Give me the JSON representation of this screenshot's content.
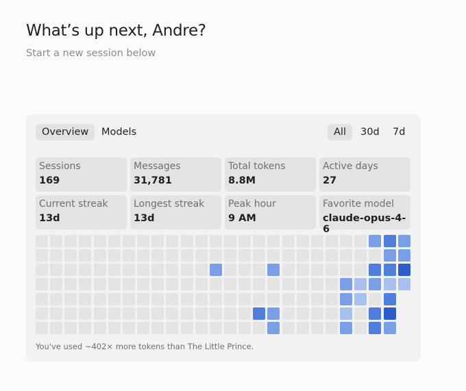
{
  "header": {
    "title": "What’s up next, Andre?",
    "subtitle": "Start a new session below"
  },
  "tabs": [
    "Overview",
    "Models"
  ],
  "ranges": [
    "All",
    "30d",
    "7d"
  ],
  "stats": [
    {
      "label": "Sessions",
      "value": "169"
    },
    {
      "label": "Messages",
      "value": "31,781"
    },
    {
      "label": "Total tokens",
      "value": "8.8M"
    },
    {
      "label": "Active days",
      "value": "27"
    },
    {
      "label": "Current streak",
      "value": "13d"
    },
    {
      "label": "Longest streak",
      "value": "13d"
    },
    {
      "label": "Peak hour",
      "value": "9 AM"
    },
    {
      "label": "Favorite model",
      "value": "claude-opus-4-6"
    }
  ],
  "heatmap": {
    "level_colors": [
      "#e4e4e4",
      "#a8c0ee",
      "#7a9fe6",
      "#4f7edb",
      "#2d5ccb"
    ],
    "rows": [
      [
        0,
        0,
        0,
        0,
        0,
        0,
        0,
        0,
        0,
        0,
        0,
        0,
        0,
        0,
        0,
        0,
        0,
        0,
        0,
        0,
        0,
        0,
        0,
        2,
        3,
        2
      ],
      [
        0,
        0,
        0,
        0,
        0,
        0,
        0,
        0,
        0,
        0,
        0,
        0,
        0,
        0,
        0,
        0,
        0,
        0,
        0,
        0,
        0,
        0,
        0,
        0,
        2,
        2
      ],
      [
        0,
        0,
        0,
        0,
        0,
        0,
        0,
        0,
        0,
        0,
        0,
        0,
        2,
        0,
        0,
        0,
        2,
        0,
        0,
        0,
        0,
        0,
        0,
        3,
        3,
        4
      ],
      [
        0,
        0,
        0,
        0,
        0,
        0,
        0,
        0,
        0,
        0,
        0,
        0,
        0,
        0,
        0,
        0,
        0,
        0,
        0,
        0,
        0,
        2,
        1,
        2,
        1,
        1
      ],
      [
        0,
        0,
        0,
        0,
        0,
        0,
        0,
        0,
        0,
        0,
        0,
        0,
        0,
        0,
        0,
        0,
        0,
        0,
        0,
        0,
        0,
        2,
        1,
        0,
        3,
        null
      ],
      [
        0,
        0,
        0,
        0,
        0,
        0,
        0,
        0,
        0,
        0,
        0,
        0,
        0,
        0,
        0,
        3,
        2,
        0,
        0,
        0,
        0,
        1,
        0,
        3,
        4,
        null
      ],
      [
        0,
        0,
        0,
        0,
        0,
        0,
        0,
        0,
        0,
        0,
        0,
        0,
        0,
        0,
        0,
        0,
        2,
        0,
        0,
        0,
        0,
        2,
        0,
        3,
        2,
        null
      ]
    ]
  },
  "footnote": "You've used ~402× more tokens than The Little Prince."
}
